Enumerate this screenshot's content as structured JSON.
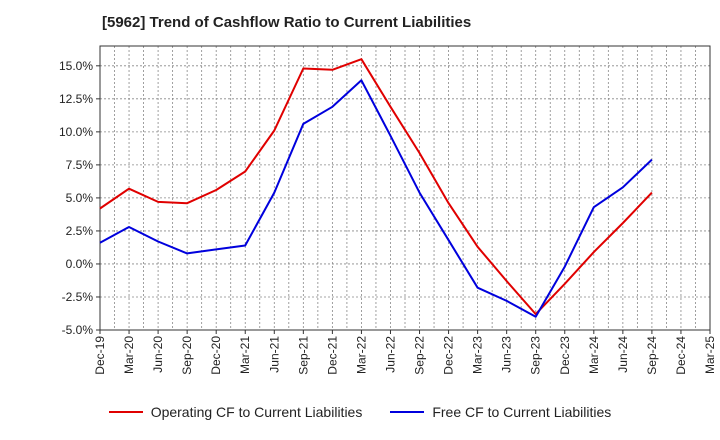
{
  "chart_data": {
    "type": "line",
    "title": "[5962]  Trend of Cashflow Ratio to Current Liabilities",
    "xlabel": "",
    "ylabel": "",
    "categories": [
      "Dec-19",
      "Mar-20",
      "Jun-20",
      "Sep-20",
      "Dec-20",
      "Mar-21",
      "Jun-21",
      "Sep-21",
      "Dec-21",
      "Mar-22",
      "Jun-22",
      "Sep-22",
      "Dec-22",
      "Mar-23",
      "Jun-23",
      "Sep-23",
      "Dec-23",
      "Mar-24",
      "Jun-24",
      "Sep-24",
      "Dec-24",
      "Mar-25"
    ],
    "yticks": [
      "-5.0%",
      "-2.5%",
      "0.0%",
      "2.5%",
      "5.0%",
      "7.5%",
      "10.0%",
      "12.5%",
      "15.0%"
    ],
    "ylim": [
      -5.0,
      16.5
    ],
    "grid": true,
    "legend_position": "bottom",
    "series": [
      {
        "name": "Operating CF to Current Liabilities",
        "color": "#e00000",
        "values": [
          4.2,
          5.7,
          4.7,
          4.6,
          5.6,
          7.0,
          10.1,
          14.8,
          14.7,
          15.5,
          11.9,
          8.4,
          4.6,
          1.3,
          -1.3,
          -3.8,
          -1.5,
          0.9,
          3.1,
          5.4,
          null,
          null
        ]
      },
      {
        "name": "Free CF to Current Liabilities",
        "color": "#0000dd",
        "values": [
          1.6,
          2.8,
          1.7,
          0.8,
          1.1,
          1.4,
          5.4,
          10.6,
          11.9,
          13.9,
          9.7,
          5.4,
          1.8,
          -1.8,
          -2.8,
          -4.0,
          -0.2,
          4.3,
          5.8,
          7.9,
          null,
          null
        ]
      }
    ]
  }
}
